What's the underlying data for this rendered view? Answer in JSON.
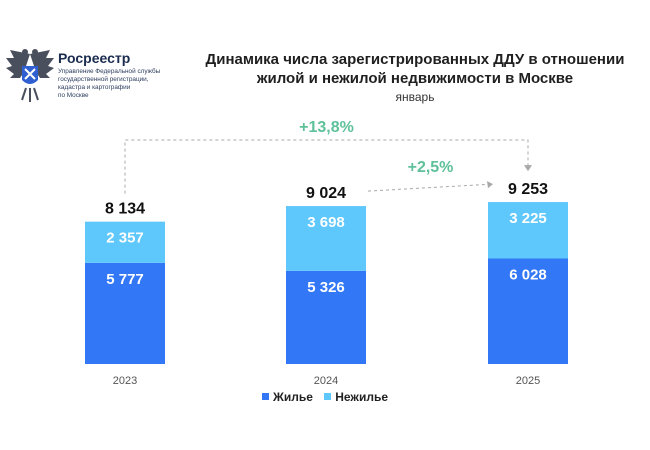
{
  "header": {
    "brand_name": "Росреестр",
    "brand_sub": [
      "Управление Федеральной службы",
      "государственной регистрации,",
      "кадастра и картографии",
      "по Москве"
    ]
  },
  "chart_data": {
    "type": "bar",
    "stacked": true,
    "title_lines": [
      "Динамика числа зарегистрированных ДДУ в отношении",
      "жилой и нежилой недвижимости в Москве"
    ],
    "subtitle": "январь",
    "categories": [
      "2023",
      "2024",
      "2025"
    ],
    "series": [
      {
        "name": "Жилье",
        "color": "#3277f5",
        "values": [
          5777,
          5326,
          6028
        ],
        "labels": [
          "5 777",
          "5 326",
          "6 028"
        ]
      },
      {
        "name": "Нежилье",
        "color": "#5ec7fb",
        "values": [
          2357,
          3698,
          3225
        ],
        "labels": [
          "2 357",
          "3 698",
          "3 225"
        ]
      }
    ],
    "totals": [
      8134,
      9024,
      9253
    ],
    "total_labels": [
      "8 134",
      "9 024",
      "9 253"
    ],
    "annotations": [
      {
        "text": "+13,8%",
        "from": "2023",
        "to": "2025",
        "color": "#5ec19a"
      },
      {
        "text": "+2,5%",
        "from": "2024",
        "to": "2025",
        "color": "#5ec19a"
      }
    ],
    "legend_position": "bottom",
    "grid": false,
    "ylim": [
      0,
      10000
    ]
  }
}
